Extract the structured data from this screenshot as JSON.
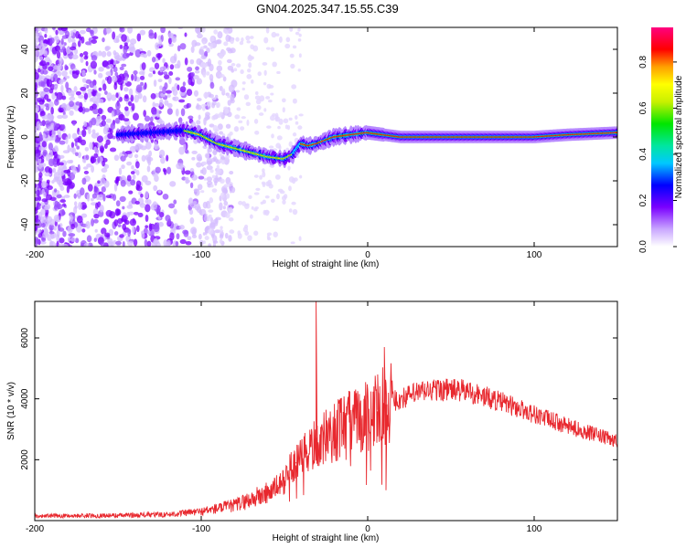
{
  "title": "GN04.2025.347.15.55.C39",
  "chart_data": [
    {
      "type": "heatmap",
      "xlabel": "Height of straight line (km)",
      "ylabel": "Frequency (Hz)",
      "xlim": [
        -200,
        150
      ],
      "ylim": [
        -50,
        50
      ],
      "xticks": [
        -200,
        -100,
        0,
        100
      ],
      "yticks": [
        -40,
        -20,
        0,
        20,
        40
      ],
      "colorbar": {
        "label": "Normalized spectral amplitude",
        "range": [
          0,
          0.95
        ],
        "ticks": [
          0.0,
          0.2,
          0.4,
          0.6,
          0.8
        ]
      },
      "ridge": {
        "x": [
          -150,
          -130,
          -110,
          -100,
          -90,
          -80,
          -70,
          -60,
          -50,
          -45,
          -40,
          -35,
          -30,
          -20,
          -10,
          0,
          20,
          50,
          80,
          100,
          120,
          150
        ],
        "y": [
          1,
          2,
          3,
          1,
          -3,
          -5,
          -7,
          -9,
          -10,
          -8,
          -3,
          -4,
          -3,
          0,
          1,
          2,
          0,
          0,
          0,
          0,
          1,
          2
        ]
      }
    },
    {
      "type": "line",
      "xlabel": "Height of straight line (km)",
      "ylabel": "SNR (10 * v/v)",
      "xlim": [
        -200,
        150
      ],
      "ylim": [
        0,
        7200
      ],
      "xticks": [
        -200,
        -100,
        0,
        100
      ],
      "yticks": [
        2000,
        4000,
        6000
      ],
      "color": "#e8282e",
      "envelope": {
        "x": [
          -200,
          -150,
          -120,
          -100,
          -80,
          -60,
          -50,
          -45,
          -40,
          -35,
          -30,
          -25,
          -20,
          -15,
          -10,
          -5,
          0,
          5,
          10,
          15,
          20,
          30,
          40,
          50,
          60,
          80,
          100,
          120,
          150
        ],
        "y": [
          150,
          170,
          200,
          300,
          500,
          900,
          1300,
          1800,
          2000,
          2300,
          2600,
          2700,
          2900,
          3100,
          3200,
          3300,
          3450,
          3600,
          3800,
          3900,
          4000,
          4200,
          4300,
          4300,
          4250,
          3900,
          3500,
          3100,
          2600
        ]
      },
      "spikes": [
        {
          "x": -31,
          "y": 7200
        },
        {
          "x": -43,
          "y": 1900
        },
        {
          "x": -37,
          "y": 2500
        },
        {
          "x": 6,
          "y": 4800
        },
        {
          "x": 10,
          "y": 5700
        },
        {
          "x": 11,
          "y": 1000
        },
        {
          "x": -2,
          "y": 4100
        }
      ]
    }
  ]
}
